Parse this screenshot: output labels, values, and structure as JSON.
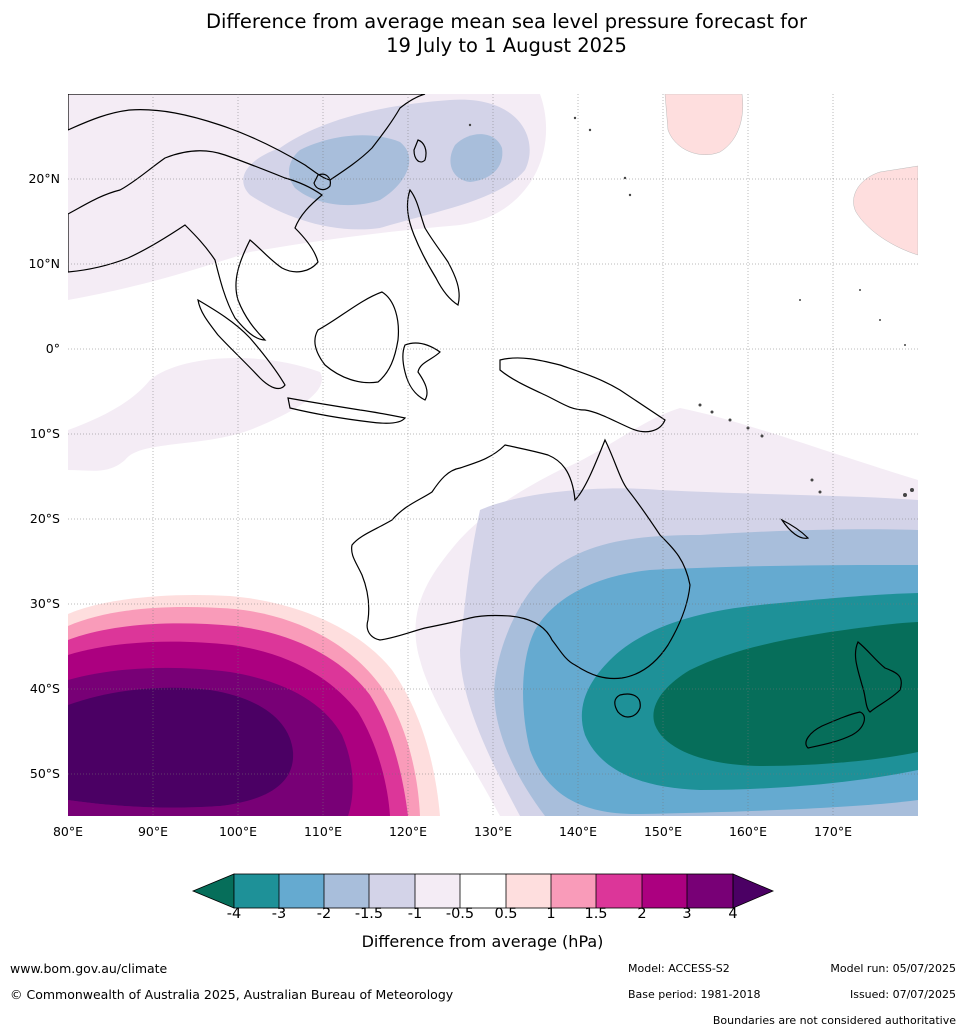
{
  "title_line1": "Difference from average mean sea level pressure forecast for",
  "title_line2": "19 July to 1 August 2025",
  "lat_labels": [
    "20°N",
    "10°N",
    "0°",
    "10°S",
    "20°S",
    "30°S",
    "40°S",
    "50°S"
  ],
  "lon_labels": [
    "80°E",
    "90°E",
    "100°E",
    "110°E",
    "120°E",
    "130°E",
    "140°E",
    "150°E",
    "160°E",
    "170°E"
  ],
  "colorbar": {
    "title": "Difference from average (hPa)",
    "ticks": [
      "-4",
      "-3",
      "-2",
      "-1.5",
      "-1",
      "-0.5",
      "0.5",
      "1",
      "1.5",
      "2",
      "3",
      "4"
    ],
    "colors": [
      "#066e5a",
      "#1e9198",
      "#65aad0",
      "#a8bedb",
      "#d3d3e8",
      "#f4ecf5",
      "#ffffff",
      "#fedede",
      "#f99bb9",
      "#dc3699",
      "#ac0080",
      "#780076",
      "#4b0064"
    ]
  },
  "footer": {
    "url": "www.bom.gov.au/climate",
    "copyright": "© Commonwealth of Australia 2025, Australian Bureau of Meteorology",
    "model": "Model: ACCESS-S2",
    "base_period": "Base period: 1981-2018",
    "model_run": "Model run: 05/07/2025",
    "issued": "Issued: 07/07/2025",
    "disclaimer": "Boundaries are not considered authoritative"
  }
}
